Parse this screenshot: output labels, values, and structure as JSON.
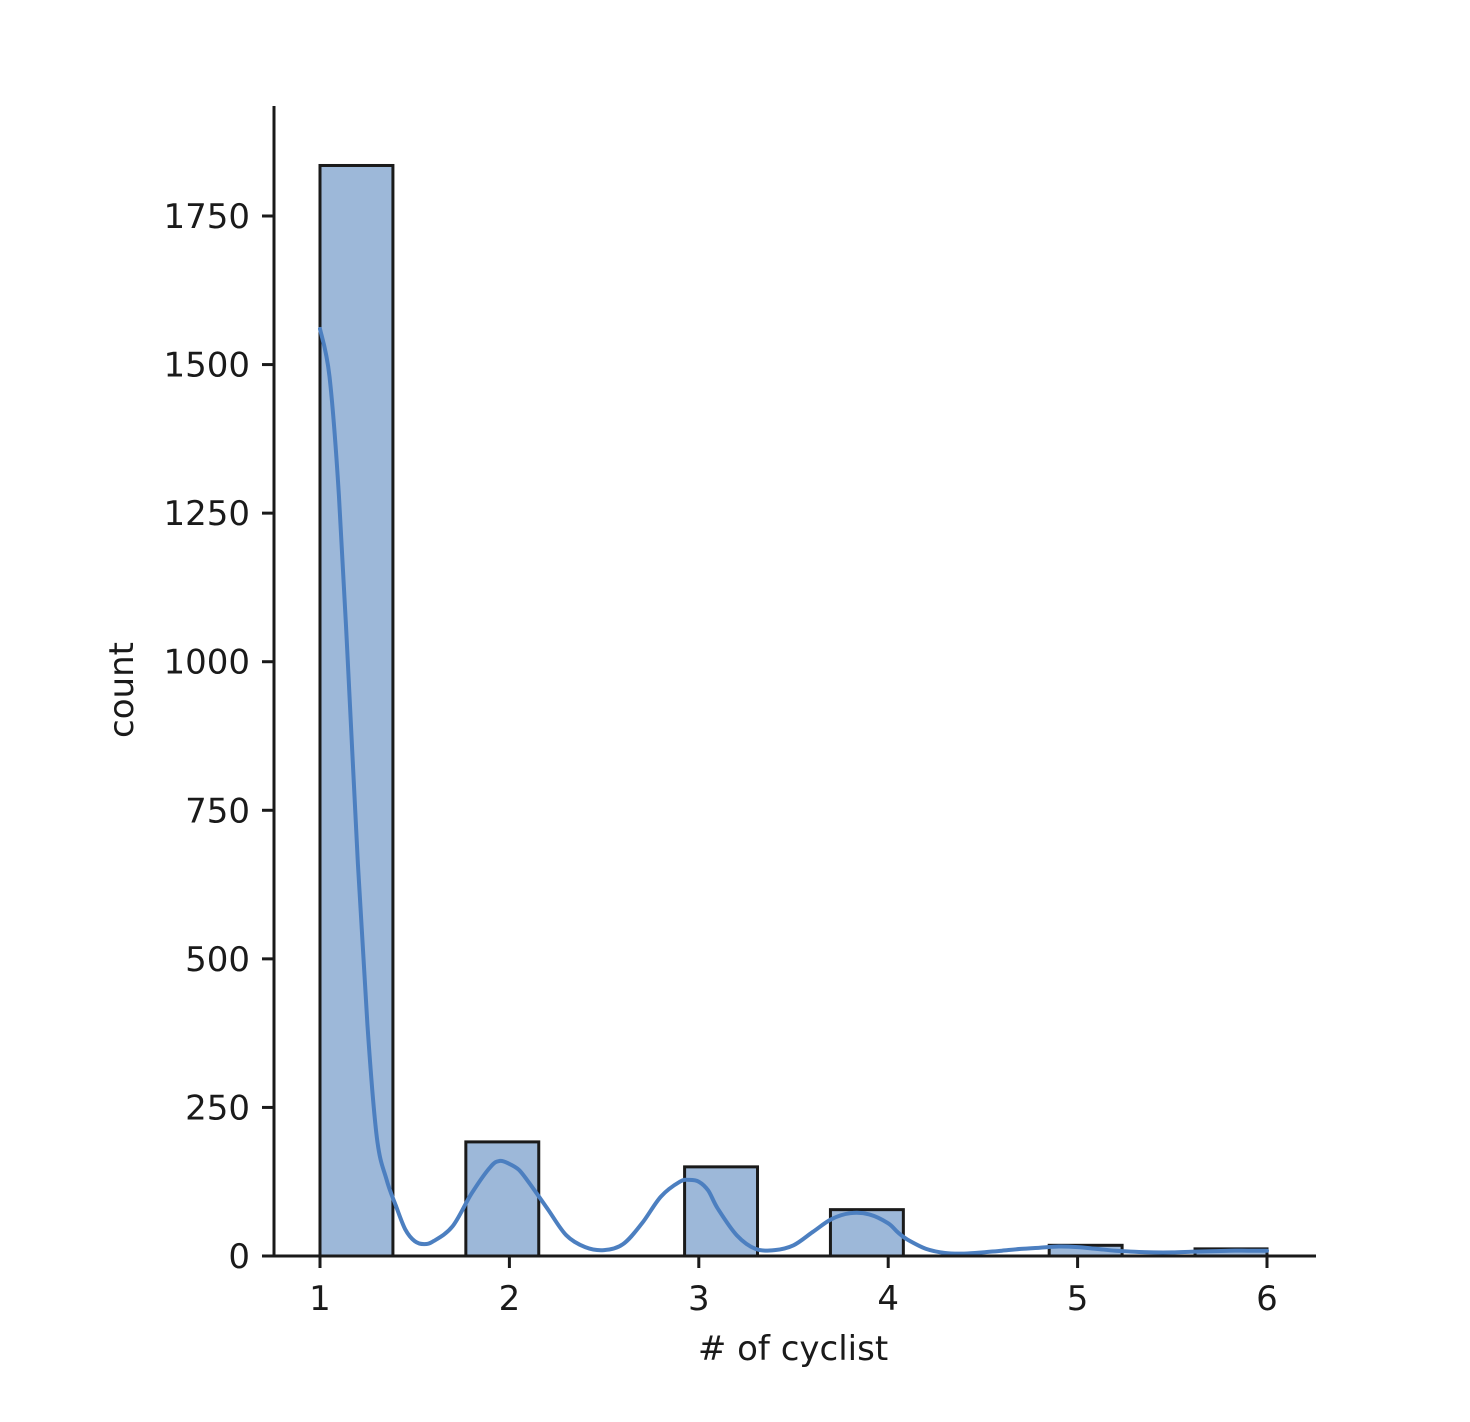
{
  "chart_data": {
    "type": "bar",
    "title": "",
    "xlabel": "# of cyclist",
    "ylabel": "count",
    "xlim": [
      0.85,
      6.25
    ],
    "ylim": [
      0,
      1930
    ],
    "x_ticks": [
      1,
      2,
      3,
      4,
      5,
      6
    ],
    "x_tick_labels": [
      "1",
      "2",
      "3",
      "4",
      "5",
      "6"
    ],
    "y_ticks": [
      0,
      250,
      500,
      750,
      1000,
      1250,
      1500,
      1750
    ],
    "y_tick_labels": [
      "0",
      "250",
      "500",
      "750",
      "1000",
      "1250",
      "1500",
      "1750"
    ],
    "bins": [
      {
        "x0": 1.0,
        "x1": 1.385,
        "count": 1835
      },
      {
        "x0": 1.77,
        "x1": 2.155,
        "count": 192
      },
      {
        "x0": 2.925,
        "x1": 3.31,
        "count": 150
      },
      {
        "x0": 3.695,
        "x1": 4.08,
        "count": 78
      },
      {
        "x0": 4.85,
        "x1": 5.235,
        "count": 18
      },
      {
        "x0": 5.62,
        "x1": 6.0,
        "count": 12
      }
    ],
    "kde": {
      "x": [
        1.0,
        1.05,
        1.1,
        1.15,
        1.2,
        1.25,
        1.3,
        1.35,
        1.4,
        1.45,
        1.5,
        1.55,
        1.6,
        1.7,
        1.8,
        1.9,
        1.95,
        2.0,
        2.05,
        2.1,
        2.2,
        2.3,
        2.4,
        2.5,
        2.6,
        2.7,
        2.8,
        2.9,
        2.95,
        3.0,
        3.05,
        3.1,
        3.2,
        3.3,
        3.4,
        3.5,
        3.6,
        3.7,
        3.8,
        3.9,
        4.0,
        4.05,
        4.1,
        4.2,
        4.3,
        4.4,
        4.5,
        4.6,
        4.7,
        4.8,
        4.9,
        5.0,
        5.1,
        5.2,
        5.3,
        5.4,
        5.5,
        5.6,
        5.7,
        5.8,
        5.9,
        6.0
      ],
      "y": [
        1560,
        1480,
        1280,
        980,
        660,
        390,
        200,
        130,
        85,
        45,
        25,
        20,
        25,
        50,
        105,
        150,
        160,
        155,
        145,
        125,
        80,
        35,
        15,
        10,
        20,
        55,
        100,
        125,
        128,
        125,
        110,
        80,
        35,
        12,
        10,
        18,
        40,
        62,
        72,
        70,
        55,
        40,
        28,
        12,
        5,
        4,
        6,
        9,
        12,
        14,
        16,
        15,
        12,
        9,
        7,
        6,
        6,
        7,
        8,
        9,
        9,
        9
      ]
    },
    "bar_color": "#9db8d9",
    "bar_edge_color": "#1a1a1a",
    "kde_color": "#4c7fc0",
    "grid": false,
    "legend": "none"
  }
}
